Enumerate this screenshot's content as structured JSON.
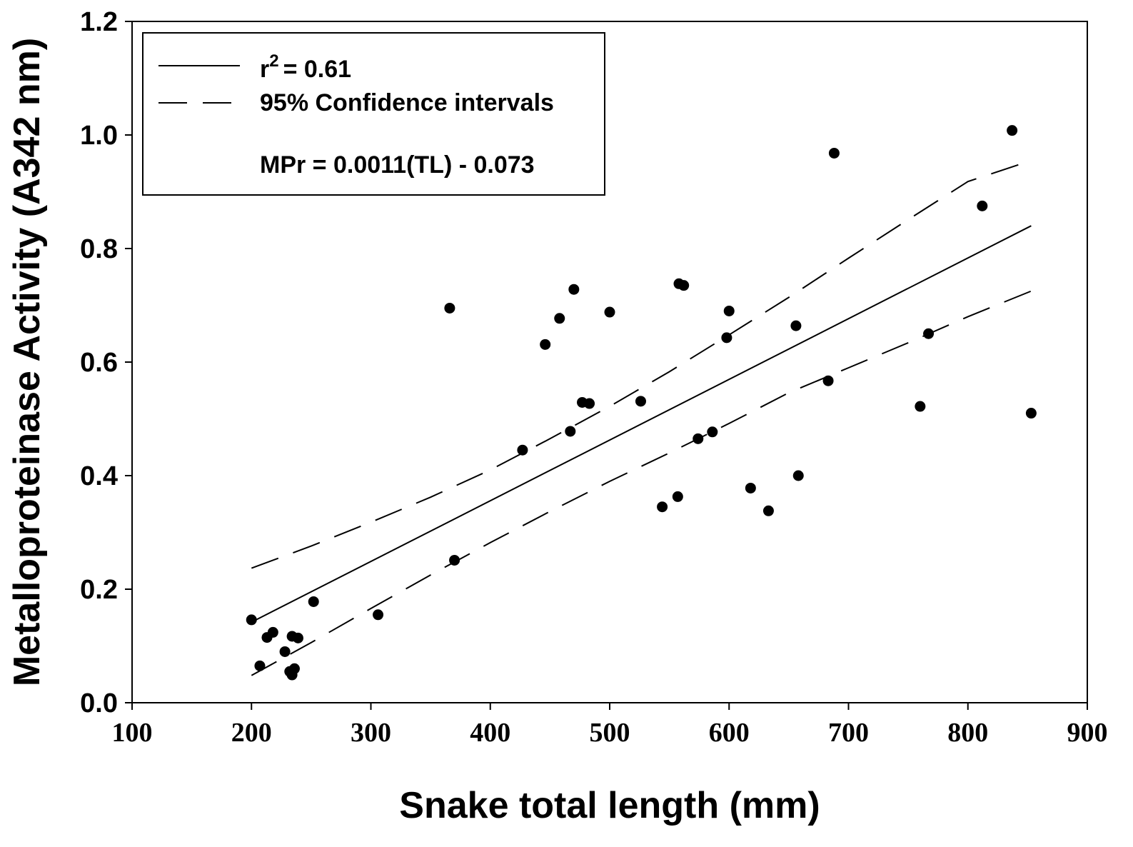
{
  "chart_data": {
    "type": "scatter",
    "title": "",
    "xlabel": "Snake total length (mm)",
    "ylabel": "Metalloproteinase Activity (A342 nm)",
    "xlim": [
      100,
      900
    ],
    "ylim": [
      0.0,
      1.2
    ],
    "x_ticks": [
      "100",
      "200",
      "300",
      "400",
      "500",
      "600",
      "700",
      "800",
      "900"
    ],
    "y_ticks": [
      "0.0",
      "0.2",
      "0.4",
      "0.6",
      "0.8",
      "1.0",
      "1.2"
    ],
    "grid": false,
    "legend_position": "top-left",
    "legend": {
      "fit_r_prefix": "r",
      "fit_r_superscript": "2",
      "fit_r_suffix": "= 0.61",
      "ci_label": "95% Confidence intervals",
      "equation": "MPr = 0.0011(TL) - 0.073"
    },
    "series": [
      {
        "name": "Observations",
        "kind": "scatter",
        "x": [
          200,
          207,
          213,
          218,
          228,
          232,
          234,
          234,
          236,
          239,
          252,
          306,
          366,
          370,
          427,
          446,
          458,
          467,
          470,
          477,
          483,
          500,
          526,
          544,
          557,
          558,
          562,
          574,
          586,
          598,
          600,
          618,
          633,
          656,
          658,
          683,
          688,
          760,
          767,
          812,
          837,
          853
        ],
        "y": [
          0.146,
          0.065,
          0.115,
          0.124,
          0.09,
          0.055,
          0.117,
          0.049,
          0.06,
          0.114,
          0.178,
          0.155,
          0.695,
          0.251,
          0.445,
          0.631,
          0.677,
          0.478,
          0.728,
          0.529,
          0.527,
          0.688,
          0.531,
          0.345,
          0.363,
          0.738,
          0.735,
          0.465,
          0.477,
          0.643,
          0.69,
          0.378,
          0.338,
          0.664,
          0.4,
          0.567,
          0.968,
          0.522,
          0.65,
          0.875,
          1.008,
          0.51
        ]
      },
      {
        "name": "Regression line",
        "kind": "line",
        "x": [
          200,
          853
        ],
        "y": [
          0.142,
          0.84
        ]
      },
      {
        "name": "Upper 95% CI",
        "kind": "dashed",
        "x": [
          200,
          250,
          300,
          350,
          400,
          450,
          500,
          550,
          600,
          650,
          700,
          750,
          800,
          853
        ],
        "y": [
          0.237,
          0.276,
          0.318,
          0.362,
          0.41,
          0.465,
          0.522,
          0.583,
          0.648,
          0.714,
          0.783,
          0.851,
          0.918,
          0.955
        ]
      },
      {
        "name": "Lower 95% CI",
        "kind": "dashed",
        "x": [
          200,
          250,
          300,
          350,
          400,
          450,
          500,
          550,
          600,
          650,
          700,
          750,
          800,
          853
        ],
        "y": [
          0.048,
          0.106,
          0.166,
          0.225,
          0.282,
          0.337,
          0.39,
          0.44,
          0.492,
          0.546,
          0.59,
          0.634,
          0.68,
          0.725
        ]
      }
    ]
  }
}
